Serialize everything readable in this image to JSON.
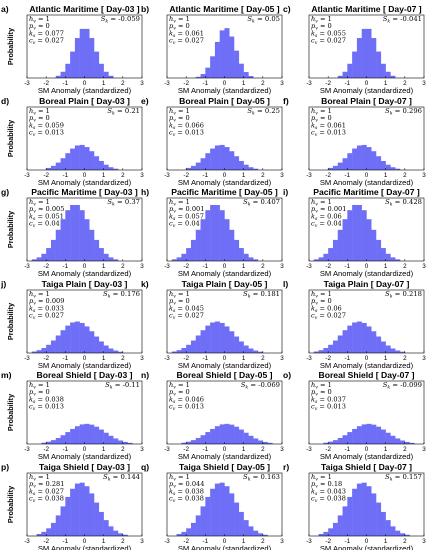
{
  "chart_data": {
    "type": "bar",
    "xlabel": "SM Anomaly (standardized)",
    "ylabel": "Probability",
    "xlim": [
      -3,
      3
    ],
    "xticks": [
      "-3",
      "-2",
      "-1",
      "0",
      "1",
      "2",
      "3"
    ],
    "bar_color": "#6e6ef7",
    "panels": [
      {
        "label": "a)",
        "title": "Atlantic Maritime [ Day-03 ]",
        "stats": [
          "h_v = 1",
          "p_v ≈ 0",
          "k_s = 0.077",
          "c_v = 0.027"
        ],
        "skew": "S_k = -0.059",
        "shape": [
          0.0,
          0.55,
          0.8
        ]
      },
      {
        "label": "b)",
        "title": "Atlantic Maritime [ Day-05 ]",
        "stats": [
          "h_v = 1",
          "p_v ≈ 0",
          "k_s = 0.061",
          "c_v = 0.027"
        ],
        "skew": "S_k = 0.05",
        "shape": [
          0.05,
          0.52,
          0.8
        ]
      },
      {
        "label": "c)",
        "title": "Atlantic Maritime [ Day-07 ]",
        "stats": [
          "h_v = 1",
          "p_v ≈ 0",
          "k_s = 0.055",
          "c_v = 0.027"
        ],
        "skew": "S_k = -0.041",
        "shape": [
          0.0,
          0.55,
          0.8
        ]
      },
      {
        "label": "d)",
        "title": "Boreal Plain [ Day-03 ]",
        "stats": [
          "h_v = 1",
          "p_v ≈ 0",
          "k_s = 0.059",
          "c_v = 0.013"
        ],
        "skew": "S_k = 0.21",
        "shape": [
          -0.2,
          0.75,
          0.4
        ]
      },
      {
        "label": "e)",
        "title": "Boreal Plain [ Day-05 ]",
        "stats": [
          "h_v = 1",
          "p_v ≈ 0",
          "k_s = 0.066",
          "c_v = 0.013"
        ],
        "skew": "S_k = 0.25",
        "shape": [
          -0.2,
          0.75,
          0.4
        ]
      },
      {
        "label": "f)",
        "title": "Boreal Plain [ Day-07 ]",
        "stats": [
          "h_v = 1",
          "p_v ≈ 0",
          "k_s = 0.061",
          "c_v = 0.013"
        ],
        "skew": "S_k = 0.296",
        "shape": [
          -0.2,
          0.75,
          0.4
        ]
      },
      {
        "label": "g)",
        "title": "Pacific Maritime [ Day-03 ]",
        "stats": [
          "h_v = 1",
          "p_v ≈ 0.005",
          "k_s = 0.051",
          "c_v = 0.04"
        ],
        "skew": "S_k = 0.37",
        "shape": [
          -0.5,
          0.8,
          0.9
        ]
      },
      {
        "label": "h)",
        "title": "Pacific Maritime [ Day-05 ]",
        "stats": [
          "h_v = 1",
          "p_v ≈ 0.001",
          "k_s = 0.057",
          "c_v = 0.04"
        ],
        "skew": "S_k = 0.407",
        "shape": [
          -0.5,
          0.8,
          0.9
        ]
      },
      {
        "label": "i)",
        "title": "Pacific Maritime [ Day-07 ]",
        "stats": [
          "h_v = 1",
          "p_v ≈ 0.001",
          "k_s = 0.06",
          "c_v = 0.04"
        ],
        "skew": "S_k = 0.428",
        "shape": [
          -0.5,
          0.8,
          0.9
        ]
      },
      {
        "label": "j)",
        "title": "Taiga Plain [ Day-03 ]",
        "stats": [
          "h_v = 1",
          "p_v ≈ 0.009",
          "k_s = 0.033",
          "c_v = 0.027"
        ],
        "skew": "S_k = 0.176",
        "shape": [
          -0.4,
          0.9,
          0.5
        ]
      },
      {
        "label": "k)",
        "title": "Taiga Plain [ Day-05 ]",
        "stats": [
          "h_v = 1",
          "p_v ≈ 0",
          "k_s = 0.045",
          "c_v = 0.027"
        ],
        "skew": "S_k = 0.181",
        "shape": [
          -0.4,
          0.9,
          0.5
        ]
      },
      {
        "label": "l)",
        "title": "Taiga Plain [ Day-07 ]",
        "stats": [
          "h_v = 1",
          "p_v ≈ 0",
          "k_s = 0.06",
          "c_v = 0.027"
        ],
        "skew": "S_k = 0.218",
        "shape": [
          -0.4,
          0.9,
          0.5
        ]
      },
      {
        "label": "m)",
        "title": "Boreal Shield [ Day-03 ]",
        "stats": [
          "h_v = 1",
          "p_v ≈ 0",
          "k_s = 0.038",
          "c_v = 0.013"
        ],
        "skew": "S_k = -0.11",
        "shape": [
          0.1,
          0.95,
          0.32
        ]
      },
      {
        "label": "n)",
        "title": "Boreal Shield [ Day-05 ]",
        "stats": [
          "h_v = 1",
          "p_v ≈ 0",
          "k_s = 0.046",
          "c_v = 0.013"
        ],
        "skew": "S_k = -0.069",
        "shape": [
          0.1,
          0.95,
          0.32
        ]
      },
      {
        "label": "o)",
        "title": "Boreal Shield [ Day-07 ]",
        "stats": [
          "h_v = 1",
          "p_v ≈ 0",
          "k_s = 0.037",
          "c_v = 0.013"
        ],
        "skew": "S_k = -0.099",
        "shape": [
          0.1,
          0.95,
          0.32
        ]
      },
      {
        "label": "p)",
        "title": "Taiga Shield [ Day-03 ]",
        "stats": [
          "h_v = 1",
          "p_v ≈ 0.281",
          "k_s = 0.027",
          "c_v = 0.038"
        ],
        "skew": "S_k = 0.144",
        "shape": [
          -0.2,
          0.85,
          0.85
        ]
      },
      {
        "label": "q)",
        "title": "Taiga Shield [ Day-05 ]",
        "stats": [
          "h_v = 1",
          "p_v ≈ 0.044",
          "k_s = 0.038",
          "c_v = 0.038"
        ],
        "skew": "S_k = 0.163",
        "shape": [
          -0.2,
          0.85,
          0.85
        ]
      },
      {
        "label": "r)",
        "title": "Taiga Shield [ Day-07 ]",
        "stats": [
          "h_v = 1",
          "p_v ≈ 0.18",
          "k_s = 0.043",
          "c_v = 0.038"
        ],
        "skew": "S_k = 0.157",
        "shape": [
          -0.2,
          0.85,
          0.85
        ]
      }
    ]
  }
}
